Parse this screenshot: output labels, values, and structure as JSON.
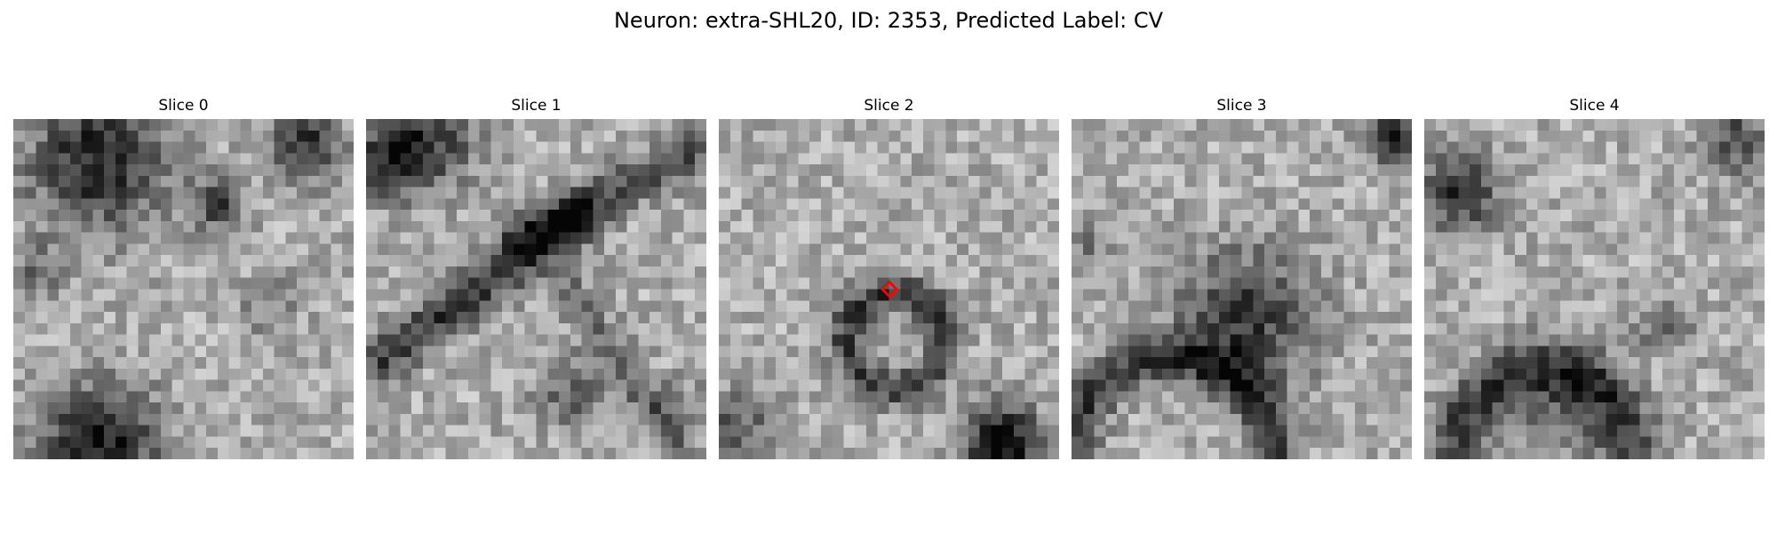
{
  "figure": {
    "title": "Neuron: extra-SHL20, ID: 2353, Predicted Label: CV",
    "colormap": "gray",
    "marker_color": "#ff0000",
    "marker_slice_index": 2,
    "slices": [
      {
        "label": "Slice 0",
        "seed": 11,
        "blobs": [
          [
            0.25,
            0.12,
            0.14,
            -0.55
          ],
          [
            0.6,
            0.25,
            0.06,
            -0.4
          ],
          [
            0.86,
            0.08,
            0.07,
            -0.5
          ],
          [
            0.25,
            0.95,
            0.12,
            -0.6
          ],
          [
            0.08,
            0.45,
            0.06,
            -0.25
          ],
          [
            0.75,
            0.55,
            0.06,
            -0.2
          ]
        ],
        "rings": [],
        "lines": []
      },
      {
        "label": "Slice 1",
        "seed": 23,
        "blobs": [
          [
            0.08,
            0.12,
            0.08,
            -0.5
          ],
          [
            0.2,
            0.05,
            0.1,
            -0.35
          ],
          [
            0.6,
            0.8,
            0.07,
            -0.3
          ],
          [
            0.92,
            0.85,
            0.06,
            -0.2
          ]
        ],
        "rings": [],
        "lines": [
          [
            0.05,
            0.7,
            0.62,
            0.3,
            0.05,
            -0.45
          ],
          [
            0.45,
            0.35,
            0.95,
            0.1,
            0.05,
            -0.35
          ],
          [
            0.6,
            0.5,
            0.9,
            0.95,
            0.04,
            -0.25
          ]
        ]
      },
      {
        "label": "Slice 2",
        "seed": 37,
        "blobs": [
          [
            0.83,
            0.95,
            0.08,
            -0.7
          ],
          [
            0.05,
            0.9,
            0.08,
            -0.3
          ]
        ],
        "rings": [
          [
            0.52,
            0.65,
            0.14,
            0.04,
            -0.45
          ]
        ],
        "lines": []
      },
      {
        "label": "Slice 3",
        "seed": 53,
        "blobs": [
          [
            0.52,
            0.58,
            0.14,
            -0.45
          ],
          [
            0.95,
            0.05,
            0.06,
            -0.55
          ],
          [
            0.05,
            0.38,
            0.05,
            -0.2
          ]
        ],
        "rings": [
          [
            0.3,
            1.0,
            0.3,
            0.05,
            -0.45
          ]
        ],
        "lines": []
      },
      {
        "label": "Slice 4",
        "seed": 71,
        "blobs": [
          [
            0.1,
            0.22,
            0.08,
            -0.5
          ],
          [
            0.92,
            0.06,
            0.07,
            -0.4
          ],
          [
            0.7,
            0.6,
            0.06,
            -0.25
          ],
          [
            0.4,
            0.85,
            0.1,
            -0.25
          ]
        ],
        "rings": [
          [
            0.35,
            0.98,
            0.25,
            0.06,
            -0.45
          ]
        ],
        "lines": []
      }
    ]
  }
}
